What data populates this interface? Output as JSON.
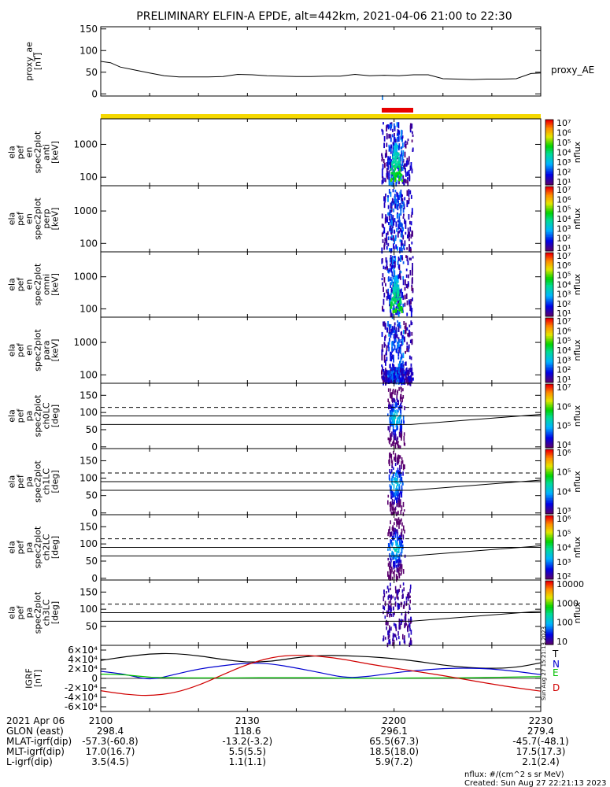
{
  "title": "PRELIMINARY ELFIN-A EPDE, alt=442km, 2021-04-06 21:00 to 22:30",
  "colors": {
    "axis": "#000000",
    "bar_yellow": "#f5d800",
    "bar_red": "#e60000",
    "bar_blue": "#3a8ee6",
    "grf_T": "#000000",
    "grf_N": "#0000d0",
    "grf_E": "#00c000",
    "grf_D": "#d00000"
  },
  "chart_data": [
    {
      "type": "line",
      "id": "proxy_ae",
      "ylabel": "proxy_ae\n[nT]",
      "legend": "proxy_AE",
      "ylim": [
        -5,
        155
      ],
      "yticks": [
        "0",
        "50",
        "100",
        "150"
      ],
      "xlim": [
        0,
        90
      ],
      "x": [
        0,
        2,
        4,
        7,
        10,
        13,
        16,
        19,
        22,
        25,
        28,
        31,
        34,
        37,
        40,
        43,
        46,
        49,
        52,
        55,
        58,
        61,
        64,
        67,
        70,
        73,
        76,
        79,
        82,
        85,
        88,
        90
      ],
      "values": [
        75,
        72,
        62,
        55,
        48,
        42,
        39,
        39,
        39,
        40,
        45,
        44,
        42,
        41,
        40,
        40,
        41,
        41,
        45,
        42,
        43,
        42,
        44,
        44,
        35,
        34,
        33,
        34,
        34,
        35,
        47,
        48
      ]
    },
    {
      "type": "heatmap",
      "id": "en_anti",
      "ylabel": "ela\npef\nen\nspec2plot\nanti\n[keV]",
      "yscale": "log",
      "ylim": [
        55,
        6000
      ],
      "yticks": [
        "100",
        "1000"
      ],
      "colorbar": {
        "label": "nflux",
        "ticks": [
          "10¹",
          "10²",
          "10³",
          "10⁴",
          "10⁵",
          "10⁶",
          "10⁷"
        ]
      }
    },
    {
      "type": "heatmap",
      "id": "en_perp",
      "ylabel": "ela\npef\nen\nspec2plot\nperp\n[keV]",
      "yscale": "log",
      "ylim": [
        55,
        6000
      ],
      "yticks": [
        "100",
        "1000"
      ],
      "colorbar": {
        "label": "nflux",
        "ticks": [
          "10¹",
          "10²",
          "10³",
          "10⁴",
          "10⁵",
          "10⁶",
          "10⁷"
        ]
      }
    },
    {
      "type": "heatmap",
      "id": "en_omni",
      "ylabel": "ela\npef\nen\nspec2plot\nomni\n[keV]",
      "yscale": "log",
      "ylim": [
        55,
        6000
      ],
      "yticks": [
        "100",
        "1000"
      ],
      "colorbar": {
        "label": "nflux",
        "ticks": [
          "10¹",
          "10²",
          "10³",
          "10⁴",
          "10⁵",
          "10⁶",
          "10⁷"
        ]
      }
    },
    {
      "type": "heatmap",
      "id": "en_para",
      "ylabel": "ela\npef\nen\nspec2plot\npara\n[keV]",
      "yscale": "log",
      "ylim": [
        55,
        6000
      ],
      "yticks": [
        "100",
        "1000"
      ],
      "colorbar": {
        "label": "nflux",
        "ticks": [
          "10¹",
          "10²",
          "10³",
          "10⁴",
          "10⁵",
          "10⁶",
          "10⁷"
        ]
      }
    },
    {
      "type": "heatmap",
      "id": "pa_ch0",
      "ylabel": "ela\npef\npa\nspec2plot\nch0LC\n[deg]",
      "ylim": [
        -5,
        185
      ],
      "yticks": [
        "0",
        "50",
        "100",
        "150"
      ],
      "colorbar": {
        "label": "nflux",
        "ticks": [
          "10⁴",
          "10⁵",
          "10⁶",
          "10⁷"
        ]
      }
    },
    {
      "type": "heatmap",
      "id": "pa_ch1",
      "ylabel": "ela\npef\npa\nspec2plot\nch1LC\n[deg]",
      "ylim": [
        -5,
        185
      ],
      "yticks": [
        "0",
        "50",
        "100",
        "150"
      ],
      "colorbar": {
        "label": "nflux",
        "ticks": [
          "10³",
          "10⁴",
          "10⁵",
          "10⁶"
        ]
      }
    },
    {
      "type": "heatmap",
      "id": "pa_ch2",
      "ylabel": "ela\npef\npa\nspec2plot\nch2LC\n[deg]",
      "ylim": [
        -5,
        185
      ],
      "yticks": [
        "0",
        "50",
        "100",
        "150"
      ],
      "colorbar": {
        "label": "nflux",
        "ticks": [
          "10²",
          "10³",
          "10⁴",
          "10⁵",
          "10⁶"
        ]
      }
    },
    {
      "type": "heatmap",
      "id": "pa_ch3",
      "ylabel": "ela\npef\npa\nspec2plot\nch3LC\n[deg]",
      "ylim": [
        -5,
        185
      ],
      "yticks": [
        "50",
        "100",
        "150"
      ],
      "colorbar": {
        "label": "nflux",
        "ticks": [
          "10",
          "100",
          "1000",
          "10000"
        ]
      }
    },
    {
      "type": "line",
      "id": "igrf",
      "ylabel": "IGRF\n[nT]",
      "ylim": [
        -70000,
        70000
      ],
      "yticks": [
        "-6×10⁴",
        "-4×10⁴",
        "-2×10⁴",
        "0",
        "2×10⁴",
        "4×10⁴",
        "6×10⁴"
      ],
      "xlim": [
        0,
        90
      ],
      "series": [
        {
          "name": "T",
          "color": "#000000",
          "x": [
            0,
            5,
            10,
            15,
            20,
            25,
            30,
            35,
            40,
            45,
            50,
            55,
            60,
            65,
            70,
            75,
            80,
            85,
            90
          ],
          "values": [
            38000,
            46000,
            52000,
            53000,
            48000,
            40000,
            34000,
            36000,
            44000,
            49000,
            48000,
            46000,
            42000,
            36000,
            28000,
            23000,
            21000,
            23000,
            33000
          ]
        },
        {
          "name": "N",
          "color": "#0000d0",
          "x": [
            0,
            5,
            10,
            15,
            20,
            25,
            30,
            35,
            40,
            45,
            50,
            55,
            60,
            65,
            70,
            75,
            80,
            85,
            90
          ],
          "values": [
            15000,
            9000,
            -4000,
            8000,
            20000,
            27000,
            33000,
            31000,
            22000,
            12000,
            1000,
            4000,
            12000,
            17000,
            21000,
            22000,
            20000,
            15000,
            8000
          ]
        },
        {
          "name": "E",
          "color": "#00c000",
          "x": [
            0,
            5,
            10,
            15,
            20,
            25,
            30,
            35,
            40,
            45,
            50,
            55,
            60,
            65,
            70,
            75,
            80,
            85,
            90
          ],
          "values": [
            9000,
            8000,
            2000,
            1500,
            1000,
            1000,
            1500,
            1500,
            1500,
            1500,
            0,
            500,
            500,
            1000,
            1000,
            1500,
            2000,
            3000,
            3500
          ]
        },
        {
          "name": "D",
          "color": "#d00000",
          "x": [
            0,
            5,
            10,
            15,
            20,
            25,
            30,
            35,
            40,
            45,
            50,
            55,
            60,
            65,
            70,
            75,
            80,
            85,
            90
          ],
          "values": [
            -26000,
            -34000,
            -37000,
            -31000,
            -15000,
            8000,
            30000,
            45000,
            50000,
            47000,
            40000,
            30000,
            22000,
            14000,
            6000,
            -3000,
            -12000,
            -20000,
            -27000
          ]
        }
      ],
      "side_stamp": "Sun Aug 27 15:21:13 2023"
    }
  ],
  "x_axis": {
    "date_label": "2021 Apr 06",
    "ticks": [
      {
        "x": 0,
        "label": "2100"
      },
      {
        "x": 30,
        "label": "2130"
      },
      {
        "x": 60,
        "label": "2200"
      },
      {
        "x": 90,
        "label": "2230"
      }
    ],
    "rows": [
      {
        "name": "GLON (east)",
        "values": [
          "298.4",
          "118.6",
          "296.1",
          "279.4"
        ]
      },
      {
        "name": "MLAT-igrf(dip)",
        "values": [
          "-57.3(-60.8)",
          "-13.2(-3.2)",
          "65.5(67.3)",
          "-45.7(-48.1)"
        ]
      },
      {
        "name": "MLT-igrf(dip)",
        "values": [
          "17.0(16.7)",
          "5.5(5.5)",
          "18.5(18.0)",
          "17.5(17.3)"
        ]
      },
      {
        "name": "L-igrf(dip)",
        "values": [
          "3.5(4.5)",
          "1.1(1.1)",
          "5.9(7.2)",
          "2.1(2.4)"
        ]
      }
    ]
  },
  "footer": {
    "units": "nflux: #/(cm^2 s sr MeV)",
    "created": "Created: Sun Aug 27 22:21:13 2023"
  }
}
